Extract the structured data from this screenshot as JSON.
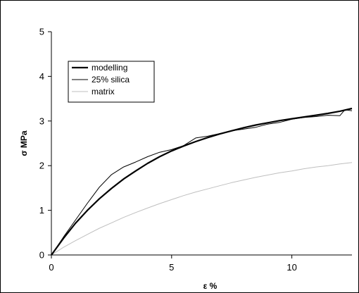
{
  "chart_data": {
    "type": "line",
    "title": "",
    "xlabel": "ε %",
    "ylabel": "σ MPa",
    "xlim": [
      0,
      12.5
    ],
    "ylim": [
      0,
      5
    ],
    "xticks": [
      0,
      5,
      10
    ],
    "yticks": [
      0,
      1,
      2,
      3,
      4,
      5
    ],
    "grid": false,
    "legend_position": "top-left",
    "series": [
      {
        "name": "modelling",
        "color": "#000000",
        "style": "thick",
        "x": [
          0,
          0.5,
          1,
          1.5,
          2,
          2.5,
          3,
          3.5,
          4,
          4.5,
          5,
          5.5,
          6,
          6.5,
          7,
          7.5,
          8,
          8.5,
          9,
          9.5,
          10,
          10.5,
          11,
          11.5,
          12,
          12.5
        ],
        "y": [
          0,
          0.37,
          0.71,
          1.0,
          1.26,
          1.49,
          1.7,
          1.88,
          2.05,
          2.2,
          2.33,
          2.44,
          2.54,
          2.63,
          2.71,
          2.78,
          2.85,
          2.91,
          2.96,
          3.01,
          3.05,
          3.09,
          3.13,
          3.17,
          3.22,
          3.28
        ]
      },
      {
        "name": "25% silica",
        "color": "#000000",
        "style": "thin",
        "x": [
          0,
          0.5,
          1,
          1.5,
          2,
          2.5,
          3,
          3.5,
          4,
          4.5,
          5,
          5.5,
          6,
          6.5,
          7,
          7.5,
          8,
          8.5,
          9,
          9.5,
          10,
          10.5,
          11,
          11.5,
          12,
          12.2,
          12.5
        ],
        "y": [
          0,
          0.4,
          0.78,
          1.16,
          1.52,
          1.8,
          1.97,
          2.08,
          2.2,
          2.3,
          2.36,
          2.45,
          2.62,
          2.66,
          2.72,
          2.78,
          2.82,
          2.86,
          2.93,
          2.97,
          3.04,
          3.08,
          3.1,
          3.13,
          3.12,
          3.25,
          3.23
        ]
      },
      {
        "name": "matrix",
        "color": "#bfbfbf",
        "style": "thin",
        "x": [
          0,
          0.5,
          1,
          1.5,
          2,
          2.5,
          3,
          3.5,
          4,
          4.5,
          5,
          5.5,
          6,
          6.5,
          7,
          7.5,
          8,
          8.5,
          9,
          9.5,
          10,
          10.5,
          11,
          11.5,
          12,
          12.5
        ],
        "y": [
          0,
          0.17,
          0.32,
          0.46,
          0.6,
          0.72,
          0.84,
          0.95,
          1.05,
          1.15,
          1.24,
          1.33,
          1.41,
          1.48,
          1.55,
          1.62,
          1.68,
          1.74,
          1.79,
          1.84,
          1.88,
          1.93,
          1.97,
          2.0,
          2.04,
          2.07
        ]
      }
    ]
  }
}
